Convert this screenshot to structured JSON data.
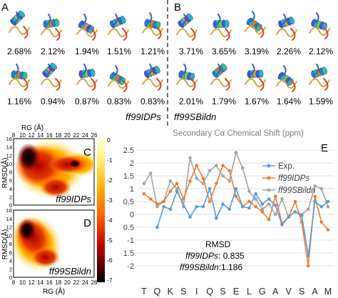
{
  "panels": {
    "A": "A",
    "B": "B",
    "C": "C",
    "D": "D",
    "E": "E"
  },
  "structures": {
    "row1": [
      "2.68%",
      "2.12%",
      "1.94%",
      "1.51%",
      "1.21%",
      "3.71%",
      "3.65%",
      "3.19%",
      "2.26%",
      "2.12%"
    ],
    "row2": [
      "1.16%",
      "0.94%",
      "0.87%",
      "0.83%",
      "0.83%",
      "2.01%",
      "1.79%",
      "1.67%",
      "1.64%",
      "1.59%"
    ],
    "label_left": "ff99IDPs",
    "label_right": "ff99SBildn"
  },
  "free_energy": {
    "x_title": "RG (Å)",
    "y_title": "RMSD(Å)",
    "x_ticks": [
      "8",
      "10",
      "12",
      "14",
      "16",
      "18",
      "20",
      "22",
      "24",
      "26"
    ],
    "y_ticks": [
      "0",
      "2",
      "4",
      "6",
      "8",
      "10",
      "12",
      "14",
      "16"
    ],
    "top_label": "ff99IDPs",
    "bottom_label": "ff99SBildn",
    "colorbar_ticks": [
      "0",
      "-1",
      "-2",
      "-3",
      "-4",
      "-5",
      "-6",
      "-7"
    ]
  },
  "chart_data": {
    "type": "line",
    "title": "Secondary Cα Chemical Shift (ppm)",
    "categories": [
      "T",
      "Q",
      "K",
      "S",
      "I",
      "Q",
      "S",
      "E",
      "L",
      "G",
      "A",
      "V",
      "S",
      "A",
      "M"
    ],
    "x_positions": [
      1,
      1.5,
      2,
      2.5,
      3,
      3.5,
      4,
      4.5,
      5,
      5.5,
      6,
      6.5,
      7,
      7.5,
      8,
      8.5,
      9,
      9.5,
      10,
      10.5,
      11,
      11.5,
      12,
      12.5,
      13,
      13.5,
      14,
      14.5,
      15
    ],
    "ylim": [
      -2,
      2.5
    ],
    "yticks": [
      -2,
      -1.5,
      -1,
      -0.5,
      0,
      0.5,
      1,
      1.5,
      2,
      2.5
    ],
    "ytick_labels": [
      "-2",
      "-1.5",
      "-1",
      "-0.5",
      "0",
      "0.5",
      "1",
      "1.5",
      "2",
      "2.5"
    ],
    "series": [
      {
        "name": "Exp.",
        "color": "#5b9bd5",
        "points": [
          [
            2,
            -0.5
          ],
          [
            2.5,
            0.3
          ],
          [
            3,
            0.2
          ],
          [
            3.5,
            0.9
          ],
          [
            4.5,
            -0.1
          ],
          [
            5,
            0.3
          ],
          [
            5.5,
            0.3
          ],
          [
            6,
            1.0
          ],
          [
            6.5,
            -0.15
          ],
          [
            7,
            0.4
          ],
          [
            7.5,
            0.2
          ],
          [
            8,
            1.0
          ],
          [
            8.5,
            0.3
          ],
          [
            9,
            0.25
          ],
          [
            9.5,
            0.8
          ],
          [
            10,
            0.4
          ],
          [
            10.5,
            0.6
          ],
          [
            11,
            0.35
          ],
          [
            11.5,
            -0.4
          ],
          [
            12,
            -0.1
          ],
          [
            12.5,
            0.1
          ],
          [
            13,
            -0.05
          ],
          [
            13.5,
            -1.6
          ],
          [
            14,
            0.5
          ],
          [
            14.5,
            0.3
          ],
          [
            15,
            0.5
          ]
        ]
      },
      {
        "name": "ff99IDPs",
        "color": "#ed7d31",
        "points": [
          [
            1,
            0.8
          ],
          [
            1.5,
            0.6
          ],
          [
            2,
            0.4
          ],
          [
            2.5,
            0.5
          ],
          [
            3,
            0.9
          ],
          [
            3.5,
            1.2
          ],
          [
            4,
            0.6
          ],
          [
            4.5,
            1.3
          ],
          [
            5,
            1.9
          ],
          [
            5.5,
            1.4
          ],
          [
            6,
            0.5
          ],
          [
            6.5,
            1.2
          ],
          [
            7,
            1.9
          ],
          [
            7.5,
            1.7
          ],
          [
            8,
            0.7
          ],
          [
            8.5,
            0.3
          ],
          [
            9,
            0.5
          ],
          [
            9.5,
            0.3
          ],
          [
            10,
            0.1
          ],
          [
            10.5,
            -0.2
          ],
          [
            11,
            0.7
          ],
          [
            11.5,
            -0.35
          ],
          [
            12,
            -0.1
          ],
          [
            12.5,
            0.5
          ],
          [
            13,
            -0.3
          ],
          [
            13.5,
            -2.0
          ],
          [
            14,
            0.7
          ],
          [
            14.5,
            -0.3
          ],
          [
            15,
            -0.6
          ]
        ]
      },
      {
        "name": "ff99SBildn",
        "color": "#a5a5a5",
        "points": [
          [
            1,
            1.2
          ],
          [
            1.5,
            1.6
          ],
          [
            2,
            0.3
          ],
          [
            2.5,
            0.5
          ],
          [
            3,
            1.3
          ],
          [
            3.5,
            1.0
          ],
          [
            4,
            0.3
          ],
          [
            4.5,
            2.2
          ],
          [
            5,
            1.4
          ],
          [
            5.5,
            1.2
          ],
          [
            6,
            1.7
          ],
          [
            6.5,
            1.9
          ],
          [
            7,
            1.5
          ],
          [
            7.5,
            1.3
          ],
          [
            8,
            2.4
          ],
          [
            8.5,
            1.8
          ],
          [
            9,
            0.9
          ],
          [
            9.5,
            0.6
          ],
          [
            10,
            0.2
          ],
          [
            10.5,
            0.4
          ],
          [
            11,
            0.0
          ],
          [
            11.5,
            0.6
          ],
          [
            12,
            -0.1
          ],
          [
            12.5,
            0.1
          ],
          [
            13,
            0.0
          ],
          [
            13.5,
            0.2
          ],
          [
            14,
            1.1
          ],
          [
            14.5,
            1.0
          ],
          [
            15,
            0.3
          ]
        ]
      }
    ],
    "legend": [
      "Exp.",
      "ff99IDPs",
      "ff99SBildn"
    ],
    "legend_position": "top-right",
    "annotation": {
      "title": "RMSD",
      "line1_label": "ff99IDPs",
      "line1_value": ": 0.835",
      "line2_label": "ff99SBildn",
      "line2_value": ":1.186"
    }
  }
}
